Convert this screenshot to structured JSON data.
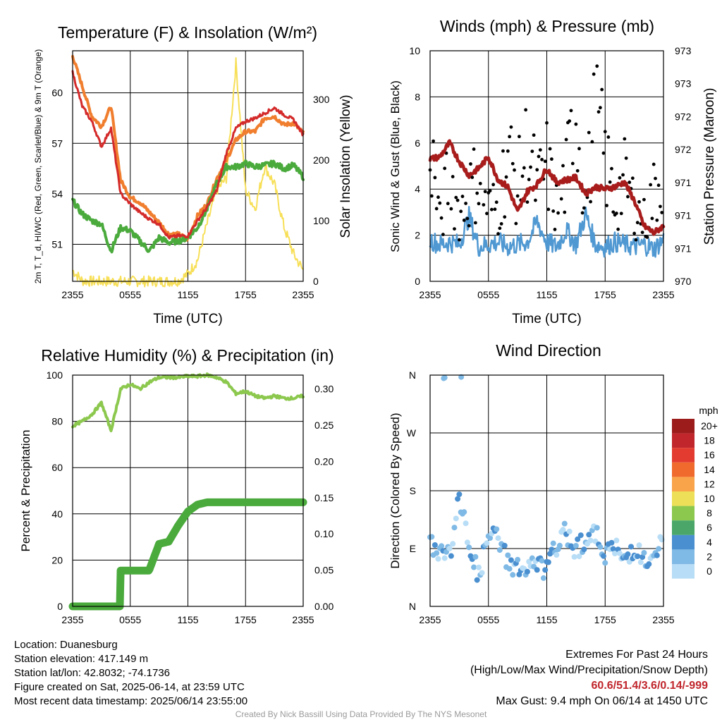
{
  "colors": {
    "red": "#d42a2a",
    "green": "#4aaa3c",
    "orange": "#f07e2e",
    "yellow": "#f7df57",
    "maroon": "#a81c1c",
    "blue": "#4f98d2",
    "lightgreen": "#8cc84e",
    "black": "#000000"
  },
  "chart_data": [
    {
      "type": "line",
      "title": "Temperature (F) & Insolation (W/m²)",
      "xlabel": "Time (UTC)",
      "ylabel_left": "2m T, T_d, HI/WC (Red, Green, Scarlet/Blue) & 9m T (Orange)",
      "ylabel_right": "Solar Insolation (Yellow)",
      "x_ticks": [
        "2355",
        "0555",
        "1155",
        "1755",
        "2355"
      ],
      "y_ticks_left": [
        51,
        54,
        57,
        60
      ],
      "y_ticks_right": [
        0,
        100,
        200,
        300
      ],
      "ylim_left": [
        48.8,
        62.5
      ],
      "ylim_right": [
        0,
        380
      ],
      "x_hours": [
        0,
        1,
        2,
        3,
        4,
        5,
        6,
        7,
        8,
        9,
        10,
        11,
        12,
        13,
        14,
        15,
        16,
        17,
        18,
        19,
        20,
        21,
        22,
        23,
        24
      ],
      "series": [
        {
          "color": "red",
          "axis": "left",
          "values": [
            61.2,
            59.2,
            58.3,
            56.8,
            57.9,
            54.0,
            53.4,
            52.9,
            52.5,
            52.2,
            51.4,
            51.5,
            51.5,
            52.4,
            53.2,
            54.2,
            56.4,
            57.9,
            58.3,
            58.5,
            58.8,
            59.1,
            58.7,
            58.4,
            57.5
          ]
        },
        {
          "color": "orange",
          "axis": "left",
          "values": [
            62.2,
            60.4,
            58.6,
            58.0,
            59.2,
            54.8,
            53.8,
            53.5,
            52.9,
            52.3,
            51.6,
            51.6,
            51.3,
            52.7,
            53.4,
            54.9,
            56.0,
            57.2,
            57.7,
            57.7,
            58.5,
            58.6,
            58.1,
            58.2,
            57.6
          ]
        },
        {
          "color": "green",
          "axis": "left",
          "values": [
            53.6,
            52.8,
            52.4,
            52.2,
            50.6,
            52.0,
            51.8,
            51.2,
            50.6,
            51.4,
            51.1,
            51.2,
            51.4,
            52.0,
            53.1,
            54.6,
            55.6,
            55.6,
            55.8,
            55.6,
            55.7,
            55.8,
            55.5,
            55.7,
            55.0
          ]
        },
        {
          "color": "yellow",
          "axis": "right",
          "values": [
            18,
            1,
            0,
            0,
            0,
            0,
            0,
            0,
            0,
            0,
            0,
            1,
            12,
            35,
            95,
            150,
            170,
            360,
            150,
            120,
            190,
            160,
            90,
            45,
            18
          ]
        }
      ]
    },
    {
      "type": "line",
      "title": "Winds (mph) & Pressure (mb)",
      "xlabel": "Time (UTC)",
      "ylabel_left": "Sonic Wind & Gust (Blue, Black)",
      "ylabel_right": "Station Pressure (Maroon)",
      "x_ticks": [
        "2355",
        "0555",
        "1155",
        "1755",
        "2355"
      ],
      "y_ticks_left": [
        0,
        2,
        4,
        6,
        8,
        10
      ],
      "y_ticks_right": [
        "970",
        "971",
        "971",
        "971",
        "972",
        "972",
        "973",
        "973"
      ],
      "ylim_left": [
        0,
        10
      ],
      "ylim_right": [
        970,
        973
      ],
      "x_hours": [
        0,
        1,
        2,
        3,
        4,
        5,
        6,
        7,
        8,
        9,
        10,
        11,
        12,
        13,
        14,
        15,
        16,
        17,
        18,
        19,
        20,
        21,
        22,
        23,
        24
      ],
      "series": [
        {
          "color": "maroon",
          "axis": "left",
          "style": "line",
          "values": [
            5.3,
            5.4,
            6.0,
            5.2,
            4.6,
            4.9,
            5.4,
            4.4,
            4.1,
            3.0,
            3.9,
            4.2,
            4.9,
            4.3,
            4.4,
            4.5,
            3.8,
            4.1,
            4.0,
            4.1,
            4.3,
            3.5,
            2.4,
            2.1,
            2.4
          ]
        },
        {
          "color": "blue",
          "axis": "left",
          "style": "line",
          "values": [
            1.8,
            1.6,
            1.7,
            1.6,
            2.8,
            1.5,
            1.6,
            1.7,
            1.5,
            1.6,
            1.7,
            2.6,
            1.7,
            1.5,
            2.2,
            1.6,
            2.9,
            1.6,
            1.5,
            1.7,
            1.6,
            1.5,
            1.6,
            1.4,
            1.8
          ]
        },
        {
          "color": "black",
          "axis": "left",
          "style": "scatter",
          "values": [
            7.7,
            3.0,
            6.0,
            3.6,
            4.8,
            5.7,
            3.9,
            4.0,
            6.9,
            5.1,
            7.3,
            4.9,
            6.2,
            3.9,
            5.6,
            9.3,
            4.3,
            8.9,
            6.5,
            4.2,
            5.4,
            4.1,
            3.2,
            4.7,
            6.1
          ]
        }
      ]
    },
    {
      "type": "line",
      "title": "Relative Humidity (%) & Precipitation (in)",
      "xlabel": "",
      "ylabel_left": "Percent & Precipitation",
      "ylabel_right": "",
      "x_ticks": [
        "2355",
        "0555",
        "1155",
        "1755",
        "2355"
      ],
      "y_ticks_left": [
        0,
        20,
        40,
        60,
        80,
        100
      ],
      "y_ticks_right": [
        "0.00",
        "0.05",
        "0.10",
        "0.15",
        "0.20",
        "0.25",
        "0.30"
      ],
      "ylim_left": [
        0,
        100
      ],
      "ylim_right": [
        0,
        0.3
      ],
      "x_hours": [
        0,
        1,
        2,
        3,
        4,
        5,
        6,
        7,
        8,
        9,
        10,
        11,
        12,
        13,
        14,
        15,
        16,
        17,
        18,
        19,
        20,
        21,
        22,
        23,
        24
      ],
      "series": [
        {
          "color": "lightgreen",
          "axis": "left",
          "values": [
            78,
            80,
            83,
            88,
            76,
            94,
            96,
            94,
            97,
            99,
            99,
            99,
            99.5,
            99.5,
            100,
            99,
            97,
            92,
            93,
            91,
            90,
            91,
            90,
            90,
            91
          ]
        },
        {
          "color": "green",
          "axis": "left",
          "values": [
            0,
            0,
            0,
            0,
            0,
            15.5,
            15.5,
            15.5,
            16,
            27,
            28,
            35,
            41,
            44,
            45,
            45,
            45,
            45,
            45,
            45,
            45,
            45,
            45,
            45,
            45
          ]
        }
      ]
    },
    {
      "type": "scatter",
      "title": "Wind Direction",
      "xlabel": "",
      "ylabel": "Direction (Colored By Speed)",
      "x_ticks": [
        "2355",
        "0555",
        "1155",
        "1755",
        "2355"
      ],
      "y_ticks": [
        "N",
        "E",
        "S",
        "W",
        "N"
      ],
      "ylim": [
        0,
        360
      ],
      "legend": {
        "title": "mph",
        "labels": [
          "20+",
          "18",
          "16",
          "14",
          "12",
          "10",
          "8",
          "6",
          "4",
          "2",
          "0"
        ],
        "colors": [
          "#9c1b1b",
          "#c0262c",
          "#e33b2f",
          "#f06a2d",
          "#f9a34a",
          "#eddf57",
          "#8cc84e",
          "#4aa769",
          "#4a8fd0",
          "#7fb9e5",
          "#b8ddf6"
        ],
        "position": "right"
      },
      "x_hours": [
        0,
        1,
        2,
        3,
        4,
        5,
        6,
        7,
        8,
        9,
        10,
        11,
        12,
        13,
        14,
        15,
        16,
        17,
        18,
        19,
        20,
        21,
        22,
        23,
        24
      ],
      "values": [
        100,
        85,
        80,
        165,
        100,
        45,
        110,
        105,
        70,
        60,
        55,
        65,
        55,
        95,
        115,
        90,
        105,
        110,
        85,
        90,
        70,
        95,
        70,
        65,
        110
      ]
    }
  ],
  "footer": {
    "location": "Location: Duanesburg",
    "elevation": "Station elevation: 417.149 m",
    "latlon": "Station lat/lon: 42.8032; -74.1736",
    "created": "Figure created on Sat, 2025-06-14, at 23:59 UTC",
    "recent": "Most recent data timestamp: 2025/06/14 23:55:00",
    "extremes_title": "Extremes For Past 24 Hours",
    "extremes_subtitle": "(High/Low/Max Wind/Precipitation/Snow Depth)",
    "extremes_values": "60.6/51.4/3.6/0.14/-999",
    "max_gust": "Max Gust: 9.4 mph On 06/14 at 1450 UTC",
    "credit": "Created By Nick Bassill Using Data Provided By The NYS Mesonet"
  }
}
